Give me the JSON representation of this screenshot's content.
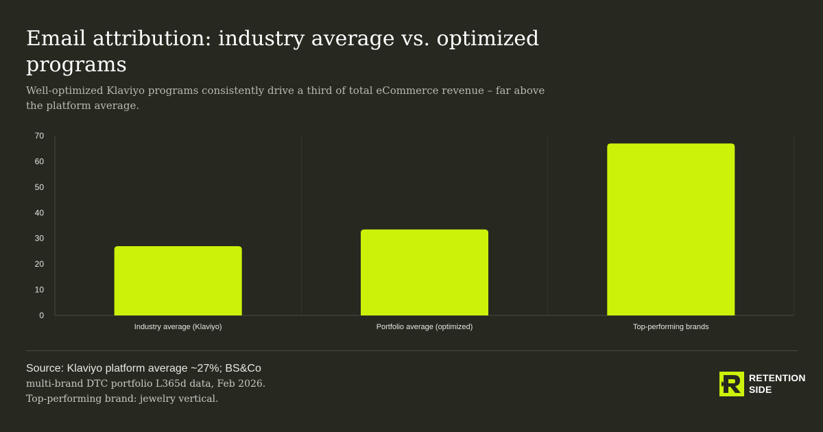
{
  "title": "Email attribution: industry average vs. optimized programs",
  "subtitle": "Well-optimized Klaviyo programs consistently drive a third of total eCommerce revenue – far above the platform average.",
  "chart_data": {
    "type": "bar",
    "categories": [
      "Industry average (Klaviyo)",
      "Portfolio average (optimized)",
      "Top-performing brands"
    ],
    "values": [
      27,
      33.5,
      67
    ],
    "ylim": [
      0,
      70
    ],
    "yticks": [
      0,
      10,
      20,
      30,
      40,
      50,
      60,
      70
    ],
    "grid": "vertical separators between categories",
    "bar_color": "#CCF20A"
  },
  "source": {
    "line1": "Source: Klaviyo platform average ~27%; BS&Co",
    "line2": "multi-brand DTC portfolio L365d data, Feb 2026.",
    "line3": "Top-performing brand: jewelry vertical."
  },
  "brand": {
    "line1": "RETENTION",
    "line2": "SIDE",
    "logo_icon": "r-icon",
    "accent": "#CCF20A",
    "background": "#272820"
  }
}
